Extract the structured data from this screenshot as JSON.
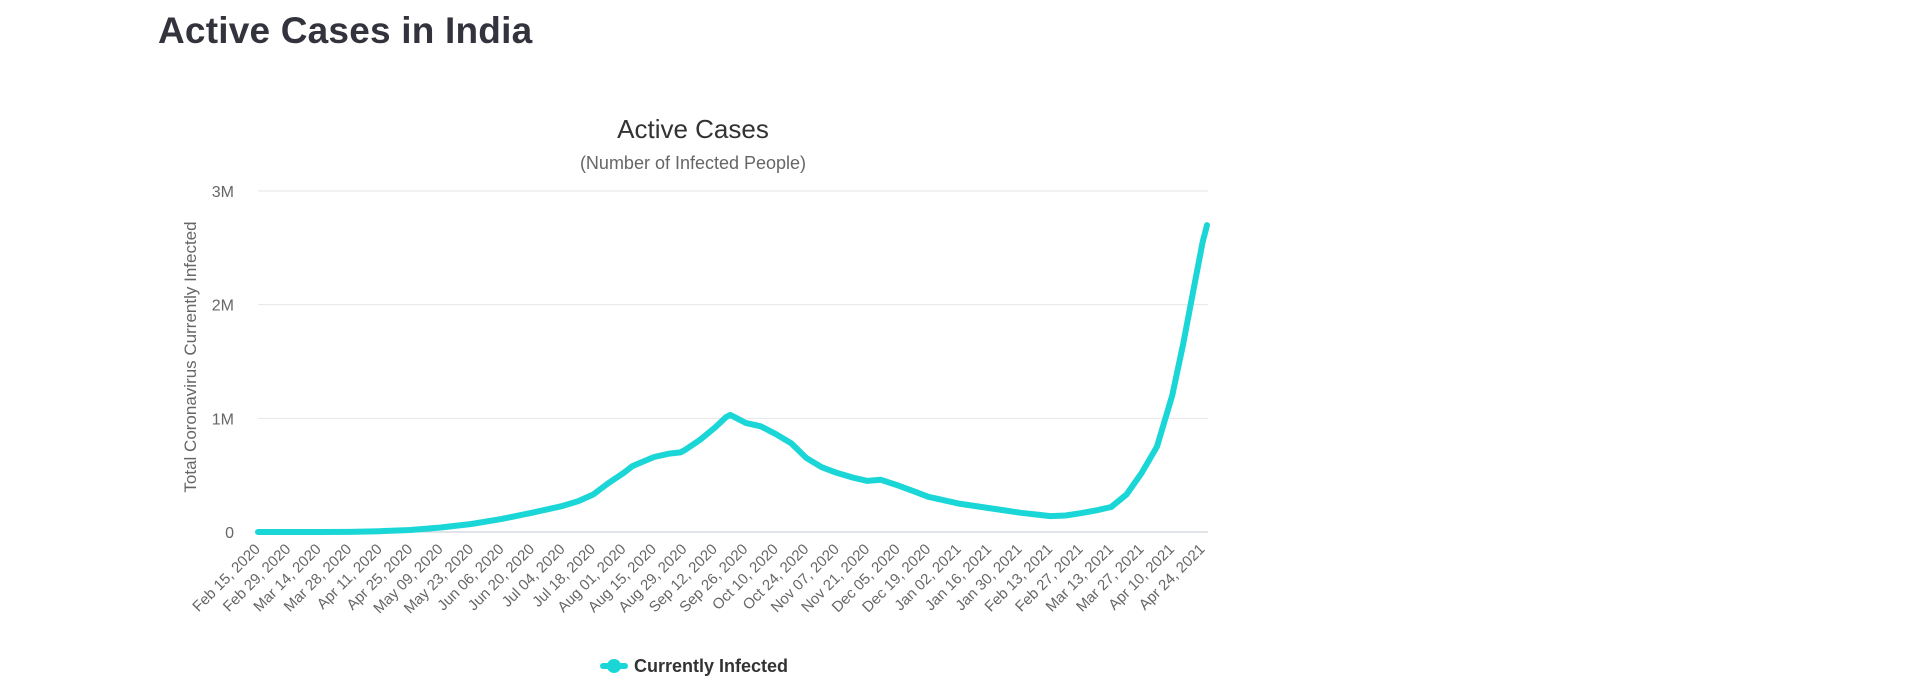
{
  "page": {
    "heading": "Active Cases in India"
  },
  "chart_data": {
    "type": "line",
    "title": "Active Cases",
    "subtitle": "(Number of Infected People)",
    "ylabel": "Total Coronavirus Currently Infected",
    "xlabel": "",
    "x_range": [
      "2020-02-15",
      "2021-04-26"
    ],
    "ylim": [
      0,
      3000000
    ],
    "y_ticks": [
      {
        "value": 0,
        "label": "0"
      },
      {
        "value": 1000000,
        "label": "1M"
      },
      {
        "value": 2000000,
        "label": "2M"
      },
      {
        "value": 3000000,
        "label": "3M"
      }
    ],
    "x_ticks": [
      {
        "date": "2020-02-15",
        "label": "Feb 15, 2020"
      },
      {
        "date": "2020-02-29",
        "label": "Feb 29, 2020"
      },
      {
        "date": "2020-03-14",
        "label": "Mar 14, 2020"
      },
      {
        "date": "2020-03-28",
        "label": "Mar 28, 2020"
      },
      {
        "date": "2020-04-11",
        "label": "Apr 11, 2020"
      },
      {
        "date": "2020-04-25",
        "label": "Apr 25, 2020"
      },
      {
        "date": "2020-05-09",
        "label": "May 09, 2020"
      },
      {
        "date": "2020-05-23",
        "label": "May 23, 2020"
      },
      {
        "date": "2020-06-06",
        "label": "Jun 06, 2020"
      },
      {
        "date": "2020-06-20",
        "label": "Jun 20, 2020"
      },
      {
        "date": "2020-07-04",
        "label": "Jul 04, 2020"
      },
      {
        "date": "2020-07-18",
        "label": "Jul 18, 2020"
      },
      {
        "date": "2020-08-01",
        "label": "Aug 01, 2020"
      },
      {
        "date": "2020-08-15",
        "label": "Aug 15, 2020"
      },
      {
        "date": "2020-08-29",
        "label": "Aug 29, 2020"
      },
      {
        "date": "2020-09-12",
        "label": "Sep 12, 2020"
      },
      {
        "date": "2020-09-26",
        "label": "Sep 26, 2020"
      },
      {
        "date": "2020-10-10",
        "label": "Oct 10, 2020"
      },
      {
        "date": "2020-10-24",
        "label": "Oct 24, 2020"
      },
      {
        "date": "2020-11-07",
        "label": "Nov 07, 2020"
      },
      {
        "date": "2020-11-21",
        "label": "Nov 21, 2020"
      },
      {
        "date": "2020-12-05",
        "label": "Dec 05, 2020"
      },
      {
        "date": "2020-12-19",
        "label": "Dec 19, 2020"
      },
      {
        "date": "2021-01-02",
        "label": "Jan 02, 2021"
      },
      {
        "date": "2021-01-16",
        "label": "Jan 16, 2021"
      },
      {
        "date": "2021-01-30",
        "label": "Jan 30, 2021"
      },
      {
        "date": "2021-02-13",
        "label": "Feb 13, 2021"
      },
      {
        "date": "2021-02-27",
        "label": "Feb 27, 2021"
      },
      {
        "date": "2021-03-13",
        "label": "Mar 13, 2021"
      },
      {
        "date": "2021-03-27",
        "label": "Mar 27, 2021"
      },
      {
        "date": "2021-04-10",
        "label": "Apr 10, 2021"
      },
      {
        "date": "2021-04-24",
        "label": "Apr 24, 2021"
      }
    ],
    "grid": true,
    "legend_position": "bottom-center",
    "series": [
      {
        "name": "Currently Infected",
        "color": "#1ad6d6",
        "points": [
          [
            "2020-02-15",
            3
          ],
          [
            "2020-03-01",
            3
          ],
          [
            "2020-03-14",
            80
          ],
          [
            "2020-03-28",
            900
          ],
          [
            "2020-04-11",
            7000
          ],
          [
            "2020-04-25",
            18000
          ],
          [
            "2020-05-09",
            40000
          ],
          [
            "2020-05-23",
            70000
          ],
          [
            "2020-06-06",
            115000
          ],
          [
            "2020-06-20",
            170000
          ],
          [
            "2020-07-04",
            230000
          ],
          [
            "2020-07-11",
            270000
          ],
          [
            "2020-07-18",
            330000
          ],
          [
            "2020-07-25",
            430000
          ],
          [
            "2020-08-01",
            520000
          ],
          [
            "2020-08-05",
            580000
          ],
          [
            "2020-08-10",
            620000
          ],
          [
            "2020-08-15",
            660000
          ],
          [
            "2020-08-22",
            690000
          ],
          [
            "2020-08-27",
            700000
          ],
          [
            "2020-08-29",
            720000
          ],
          [
            "2020-09-05",
            810000
          ],
          [
            "2020-09-12",
            920000
          ],
          [
            "2020-09-17",
            1010000
          ],
          [
            "2020-09-19",
            1030000
          ],
          [
            "2020-09-22",
            1000000
          ],
          [
            "2020-09-26",
            960000
          ],
          [
            "2020-10-03",
            930000
          ],
          [
            "2020-10-10",
            860000
          ],
          [
            "2020-10-17",
            780000
          ],
          [
            "2020-10-24",
            650000
          ],
          [
            "2020-10-31",
            570000
          ],
          [
            "2020-11-07",
            520000
          ],
          [
            "2020-11-14",
            480000
          ],
          [
            "2020-11-21",
            450000
          ],
          [
            "2020-11-27",
            460000
          ],
          [
            "2020-12-05",
            410000
          ],
          [
            "2020-12-12",
            360000
          ],
          [
            "2020-12-19",
            310000
          ],
          [
            "2020-12-26",
            280000
          ],
          [
            "2021-01-02",
            250000
          ],
          [
            "2021-01-09",
            230000
          ],
          [
            "2021-01-16",
            210000
          ],
          [
            "2021-01-23",
            190000
          ],
          [
            "2021-01-30",
            170000
          ],
          [
            "2021-02-06",
            155000
          ],
          [
            "2021-02-13",
            140000
          ],
          [
            "2021-02-20",
            145000
          ],
          [
            "2021-02-27",
            165000
          ],
          [
            "2021-03-06",
            190000
          ],
          [
            "2021-03-13",
            220000
          ],
          [
            "2021-03-20",
            330000
          ],
          [
            "2021-03-27",
            520000
          ],
          [
            "2021-04-03",
            750000
          ],
          [
            "2021-04-10",
            1200000
          ],
          [
            "2021-04-15",
            1650000
          ],
          [
            "2021-04-20",
            2150000
          ],
          [
            "2021-04-24",
            2550000
          ],
          [
            "2021-04-26",
            2700000
          ]
        ]
      }
    ]
  }
}
